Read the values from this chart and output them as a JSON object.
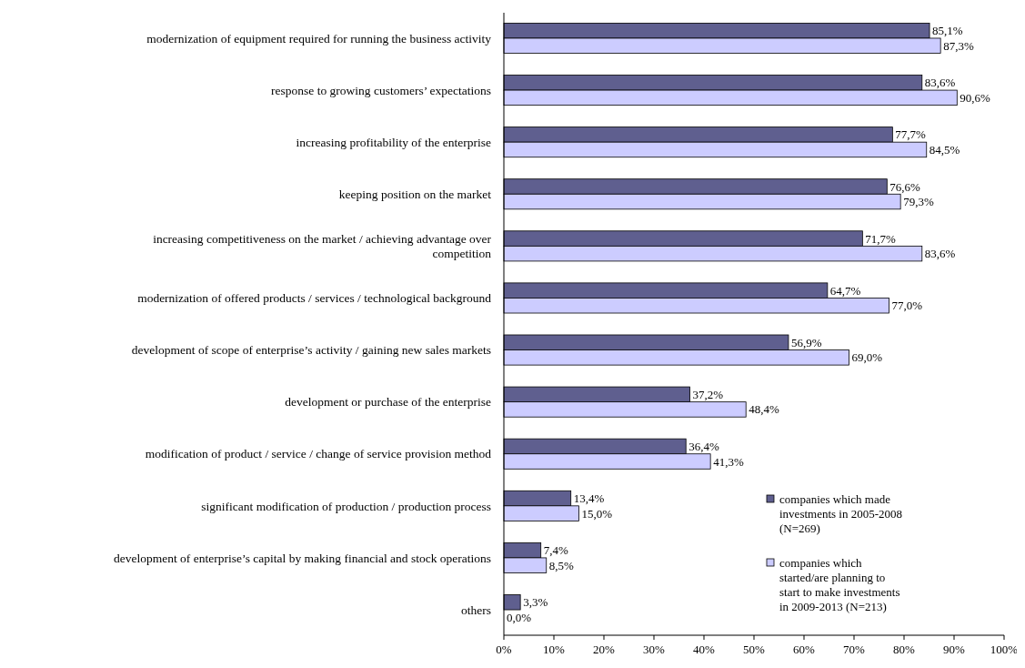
{
  "chart_data": {
    "type": "bar",
    "orientation": "horizontal",
    "categories": [
      "modernization of equipment required for running the business activity",
      "response to growing customers’ expectations",
      "increasing profitability of the enterprise",
      "keeping position on the market",
      "increasing competitiveness on the market / achieving advantage over competition",
      "modernization of offered products / services / technological background ",
      "development of scope of enterprise’s activity / gaining new sales markets",
      "development or purchase of the enterprise",
      "modification of product / service / change of service provision method",
      "significant modification of production / production process",
      "development of enterprise’s capital by making financial and stock operations",
      "others"
    ],
    "series": [
      {
        "name": "companies which made investments in 2005-2008 (N=269)",
        "color": "#5f5f8f",
        "values": [
          85.1,
          83.6,
          77.7,
          76.6,
          71.7,
          64.7,
          56.9,
          37.2,
          36.4,
          13.4,
          7.4,
          3.3
        ],
        "value_labels": [
          "85,1%",
          "83,6%",
          "77,7%",
          "76,6%",
          "71,7%",
          "64,7%",
          "56,9%",
          "37,2%",
          "36,4%",
          "13,4%",
          "7,4%",
          "3,3%"
        ]
      },
      {
        "name": "companies which started/are planning to start to make investments in 2009-2013 (N=213)",
        "color": "#ccccff",
        "values": [
          87.3,
          90.6,
          84.5,
          79.3,
          83.6,
          77.0,
          69.0,
          48.4,
          41.3,
          15.0,
          8.5,
          0.0
        ],
        "value_labels": [
          "87,3%",
          "90,6%",
          "84,5%",
          "79,3%",
          "83,6%",
          "77,0%",
          "69,0%",
          "48,4%",
          "41,3%",
          "15,0%",
          "8,5%",
          "0,0%"
        ]
      }
    ],
    "xlim": [
      0,
      100
    ],
    "xticks": [
      {
        "value": 0,
        "label": "0%"
      },
      {
        "value": 10,
        "label": "10%"
      },
      {
        "value": 20,
        "label": "20%"
      },
      {
        "value": 30,
        "label": "30%"
      },
      {
        "value": 40,
        "label": "40%"
      },
      {
        "value": 50,
        "label": "50%"
      },
      {
        "value": 60,
        "label": "60%"
      },
      {
        "value": 70,
        "label": "70%"
      },
      {
        "value": 80,
        "label": "80%"
      },
      {
        "value": 90,
        "label": "90%"
      },
      {
        "value": 100,
        "label": "100%"
      }
    ],
    "grid": false,
    "legend": "bottom right"
  }
}
